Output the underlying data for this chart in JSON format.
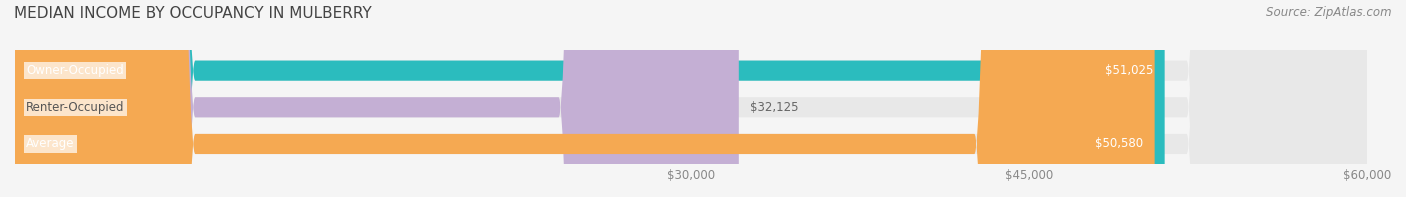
{
  "title": "MEDIAN INCOME BY OCCUPANCY IN MULBERRY",
  "source": "Source: ZipAtlas.com",
  "categories": [
    "Owner-Occupied",
    "Renter-Occupied",
    "Average"
  ],
  "values": [
    51025,
    32125,
    50580
  ],
  "bar_colors": [
    "#2bbcbe",
    "#c4afd4",
    "#f5a952"
  ],
  "bar_bg_color": "#e8e8e8",
  "value_labels": [
    "$51,025",
    "$32,125",
    "$50,580"
  ],
  "xlim": [
    0,
    60000
  ],
  "xticks": [
    30000,
    45000,
    60000
  ],
  "xtick_labels": [
    "$30,000",
    "$45,000",
    "$60,000"
  ],
  "title_fontsize": 11,
  "label_fontsize": 8.5,
  "bar_label_fontsize": 8.5,
  "source_fontsize": 8.5,
  "background_color": "#f5f5f5"
}
